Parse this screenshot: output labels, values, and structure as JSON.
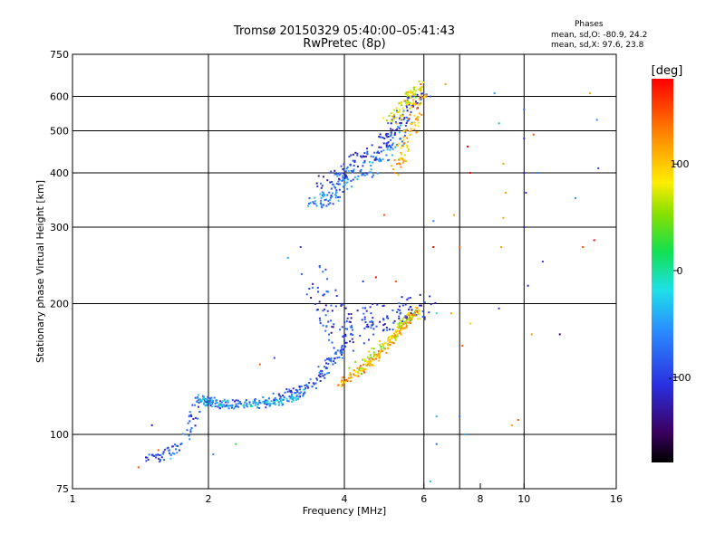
{
  "header": {
    "title_line1": "Tromsø 20150329 05:40:00–05:41:43",
    "title_line2": "RwPretec (8p)",
    "phases_title": "Phases",
    "phases_o": "mean, sd,O: -80.9, 24.2",
    "phases_x": "mean, sd,X:  97.6, 23.8"
  },
  "colorbar": {
    "unit_label": "[deg]",
    "ticks": [
      {
        "label": "100",
        "value": 100
      },
      {
        "label": "0",
        "value": 0
      },
      {
        "label": "-100",
        "value": -100
      }
    ],
    "range": [
      -180,
      180
    ]
  },
  "chart_data": {
    "type": "scatter",
    "title": "Tromsø 20150329 05:40:00–05:41:43",
    "subtitle": "RwPretec (8p)",
    "xlabel": "Frequency [MHz]",
    "ylabel": "Stationary phase Virtual Height [km]",
    "x_scale": "log",
    "y_scale": "log",
    "xlim": [
      1,
      16
    ],
    "ylim": [
      75,
      750
    ],
    "x_ticks": [
      {
        "label": "1",
        "value": 1
      },
      {
        "label": "2",
        "value": 2
      },
      {
        "label": "4",
        "value": 4
      },
      {
        "label": "6",
        "value": 6
      },
      {
        "label": "8",
        "value": 8
      },
      {
        "label": "10",
        "value": 10
      },
      {
        "label": "16",
        "value": 16
      }
    ],
    "x_grid": [
      2,
      4,
      6,
      7.2,
      10
    ],
    "y_ticks": [
      {
        "label": "75",
        "value": 75
      },
      {
        "label": "100",
        "value": 100
      },
      {
        "label": "200",
        "value": 200
      },
      {
        "label": "300",
        "value": 300
      },
      {
        "label": "400",
        "value": 400
      },
      {
        "label": "500",
        "value": 500
      },
      {
        "label": "600",
        "value": 600
      },
      {
        "label": "750",
        "value": 750
      }
    ],
    "y_grid": [
      100,
      200,
      300,
      400,
      500,
      600
    ],
    "color": "phase [deg]",
    "traces": [
      {
        "x": [
          1.45,
          1.6,
          1.75,
          1.9,
          2.0,
          2.2,
          2.5,
          2.8,
          3.1,
          3.4,
          3.6,
          3.8,
          4.0
        ],
        "y": [
          87,
          90,
          95,
          118,
          120,
          117,
          117,
          120,
          125,
          130,
          140,
          150,
          160
        ],
        "phase": -90,
        "spread": 0.03
      },
      {
        "x": [
          1.9,
          2.0,
          2.2,
          2.5,
          2.8,
          3.0,
          3.3
        ],
        "y": [
          122,
          118,
          118,
          117,
          118,
          120,
          125
        ],
        "phase": -40,
        "spread": 0.02
      },
      {
        "x": [
          3.9,
          4.1,
          4.4,
          4.7,
          5.0,
          5.3,
          5.6,
          5.8
        ],
        "y": [
          130,
          135,
          142,
          150,
          162,
          175,
          185,
          195
        ],
        "phase": 120,
        "spread": 0.02
      },
      {
        "x": [
          4.2,
          4.6,
          5.0,
          5.4,
          5.8
        ],
        "y": [
          140,
          150,
          165,
          180,
          190
        ],
        "phase": 70,
        "spread": 0.03
      },
      {
        "x": [
          3.4,
          3.6,
          3.8,
          4.0,
          4.3,
          4.6,
          5.0,
          5.5,
          6.0
        ],
        "y": [
          230,
          200,
          180,
          165,
          175,
          185,
          190,
          195,
          195
        ],
        "phase": -100,
        "spread": 0.08
      },
      {
        "x": [
          3.4,
          3.6,
          3.8,
          4.0,
          4.4,
          4.8,
          5.2,
          5.5
        ],
        "y": [
          340,
          345,
          360,
          380,
          400,
          430,
          470,
          520
        ],
        "phase": -70,
        "spread": 0.04
      },
      {
        "x": [
          3.6,
          3.9,
          4.2,
          4.6,
          5.0,
          5.3,
          5.6,
          5.9
        ],
        "y": [
          380,
          395,
          420,
          450,
          480,
          530,
          570,
          620
        ],
        "phase": -100,
        "spread": 0.04
      },
      {
        "x": [
          5.2,
          5.4,
          5.6,
          5.8,
          6.0
        ],
        "y": [
          400,
          450,
          500,
          560,
          640
        ],
        "phase": 110,
        "spread": 0.03
      },
      {
        "x": [
          5.0,
          5.3,
          5.6,
          5.9
        ],
        "y": [
          520,
          560,
          600,
          640
        ],
        "phase": 80,
        "spread": 0.03
      }
    ],
    "points": [
      {
        "x": 1.5,
        "y": 105,
        "phase": -120
      },
      {
        "x": 1.55,
        "y": 92,
        "phase": 150
      },
      {
        "x": 1.4,
        "y": 84,
        "phase": 150
      },
      {
        "x": 1.65,
        "y": 88,
        "phase": -20
      },
      {
        "x": 2.05,
        "y": 90,
        "phase": -60
      },
      {
        "x": 2.3,
        "y": 95,
        "phase": 20
      },
      {
        "x": 2.6,
        "y": 145,
        "phase": 150
      },
      {
        "x": 2.8,
        "y": 150,
        "phase": -100
      },
      {
        "x": 3.0,
        "y": 255,
        "phase": -40
      },
      {
        "x": 3.2,
        "y": 270,
        "phase": -100
      },
      {
        "x": 4.4,
        "y": 225,
        "phase": -100
      },
      {
        "x": 4.7,
        "y": 230,
        "phase": 180
      },
      {
        "x": 4.9,
        "y": 320,
        "phase": 150
      },
      {
        "x": 5.2,
        "y": 225,
        "phase": 150
      },
      {
        "x": 6.2,
        "y": 600,
        "phase": -90
      },
      {
        "x": 6.3,
        "y": 310,
        "phase": -60
      },
      {
        "x": 6.3,
        "y": 270,
        "phase": 180
      },
      {
        "x": 6.4,
        "y": 190,
        "phase": -20
      },
      {
        "x": 6.4,
        "y": 110,
        "phase": -40
      },
      {
        "x": 6.4,
        "y": 95,
        "phase": -80
      },
      {
        "x": 6.2,
        "y": 78,
        "phase": -40
      },
      {
        "x": 6.7,
        "y": 640,
        "phase": 120
      },
      {
        "x": 6.9,
        "y": 190,
        "phase": 120
      },
      {
        "x": 7.0,
        "y": 320,
        "phase": 120
      },
      {
        "x": 7.2,
        "y": 270,
        "phase": 150
      },
      {
        "x": 7.3,
        "y": 160,
        "phase": 150
      },
      {
        "x": 7.5,
        "y": 460,
        "phase": 180
      },
      {
        "x": 7.6,
        "y": 400,
        "phase": 180
      },
      {
        "x": 7.6,
        "y": 180,
        "phase": 100
      },
      {
        "x": 7.4,
        "y": 100,
        "phase": -40
      },
      {
        "x": 7.2,
        "y": 110,
        "phase": -80
      },
      {
        "x": 8.6,
        "y": 610,
        "phase": -60
      },
      {
        "x": 8.8,
        "y": 520,
        "phase": -40
      },
      {
        "x": 9.0,
        "y": 420,
        "phase": 120
      },
      {
        "x": 9.1,
        "y": 360,
        "phase": 120
      },
      {
        "x": 9.0,
        "y": 315,
        "phase": 120
      },
      {
        "x": 8.9,
        "y": 270,
        "phase": 120
      },
      {
        "x": 8.8,
        "y": 195,
        "phase": -100
      },
      {
        "x": 9.4,
        "y": 105,
        "phase": 120
      },
      {
        "x": 9.7,
        "y": 108,
        "phase": 150
      },
      {
        "x": 10.0,
        "y": 560,
        "phase": -80
      },
      {
        "x": 10.0,
        "y": 480,
        "phase": -120
      },
      {
        "x": 10.0,
        "y": 400,
        "phase": -120
      },
      {
        "x": 10.1,
        "y": 360,
        "phase": -100
      },
      {
        "x": 10.0,
        "y": 300,
        "phase": -120
      },
      {
        "x": 10.2,
        "y": 220,
        "phase": -120
      },
      {
        "x": 10.5,
        "y": 490,
        "phase": 150
      },
      {
        "x": 10.7,
        "y": 400,
        "phase": -60
      },
      {
        "x": 11.0,
        "y": 250,
        "phase": -100
      },
      {
        "x": 10.4,
        "y": 170,
        "phase": 120
      },
      {
        "x": 12.0,
        "y": 170,
        "phase": -150
      },
      {
        "x": 13.0,
        "y": 350,
        "phase": -60
      },
      {
        "x": 13.5,
        "y": 270,
        "phase": 150
      },
      {
        "x": 14.0,
        "y": 610,
        "phase": 120
      },
      {
        "x": 14.5,
        "y": 530,
        "phase": -60
      },
      {
        "x": 14.6,
        "y": 410,
        "phase": -100
      },
      {
        "x": 14.3,
        "y": 280,
        "phase": 180
      }
    ]
  }
}
